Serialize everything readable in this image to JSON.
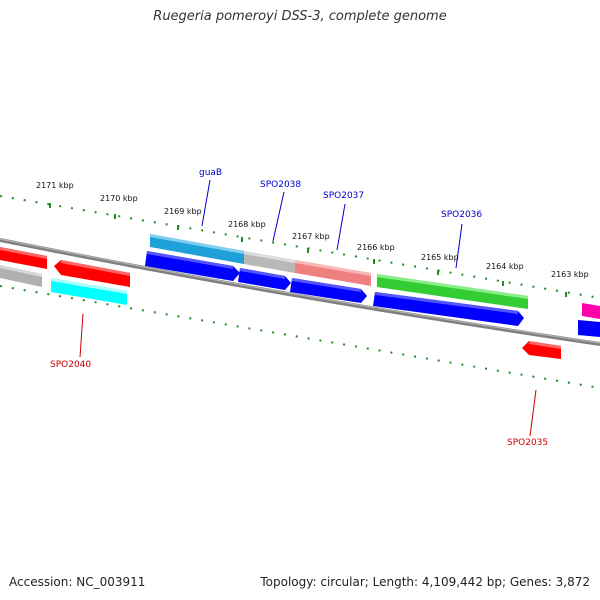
{
  "title": "Ruegeria pomeroyi DSS-3, complete genome",
  "footer": {
    "accession": "Accession: NC_003911",
    "summary": "Topology: circular; Length: 4,109,442 bp; Genes: 3,872"
  },
  "colors": {
    "backbone": "#808080",
    "tick": "#228b22",
    "label_plus": "#0000cc",
    "label_minus": "#cc0000"
  },
  "kbp_labels": [
    "2171 kbp",
    "2170 kbp",
    "2169 kbp",
    "2168 kbp",
    "2167 kbp",
    "2166 kbp",
    "2165 kbp",
    "2164 kbp",
    "2163 kbp"
  ],
  "gene_labels": [
    {
      "name": "guaB",
      "strand": "top"
    },
    {
      "name": "SPO2038",
      "strand": "top"
    },
    {
      "name": "SPO2037",
      "strand": "top"
    },
    {
      "name": "SPO2036",
      "strand": "top"
    },
    {
      "name": "SPO2040",
      "strand": "bottom"
    },
    {
      "name": "SPO2035",
      "strand": "bottom"
    }
  ],
  "features": [
    {
      "color": "#ff0000",
      "track": "outer-top",
      "arrow": "left"
    },
    {
      "color": "#b0b0b0",
      "track": "outer-top",
      "arrow": "none"
    },
    {
      "color": "#ff0000",
      "track": "outer-top",
      "arrow": "left"
    },
    {
      "color": "#00ffff",
      "track": "outer-bottom",
      "arrow": "none"
    },
    {
      "color": "#1ea0d8",
      "track": "cds-top",
      "arrow": "none"
    },
    {
      "color": "#b8b8b8",
      "track": "cds-top",
      "arrow": "none"
    },
    {
      "color": "#f08080",
      "track": "cds-top",
      "arrow": "none"
    },
    {
      "color": "#33cc33",
      "track": "cds-top",
      "arrow": "none"
    },
    {
      "color": "#ff00aa",
      "track": "cds-top",
      "arrow": "none"
    },
    {
      "color": "#0000ff",
      "track": "cds-mid",
      "arrow": "right"
    },
    {
      "color": "#0000ff",
      "track": "cds-mid",
      "arrow": "right"
    },
    {
      "color": "#0000ff",
      "track": "cds-mid",
      "arrow": "right"
    },
    {
      "color": "#0000ff",
      "track": "cds-mid",
      "arrow": "right"
    },
    {
      "color": "#0000ff",
      "track": "cds-mid",
      "arrow": "none"
    },
    {
      "color": "#ff0000",
      "track": "cds-bottom",
      "arrow": "left"
    }
  ]
}
